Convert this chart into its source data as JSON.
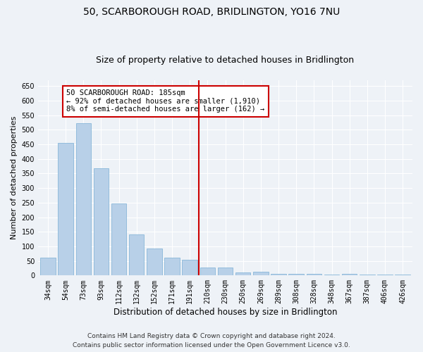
{
  "title": "50, SCARBOROUGH ROAD, BRIDLINGTON, YO16 7NU",
  "subtitle": "Size of property relative to detached houses in Bridlington",
  "xlabel": "Distribution of detached houses by size in Bridlington",
  "ylabel": "Number of detached properties",
  "categories": [
    "34sqm",
    "54sqm",
    "73sqm",
    "93sqm",
    "112sqm",
    "132sqm",
    "152sqm",
    "171sqm",
    "191sqm",
    "210sqm",
    "230sqm",
    "250sqm",
    "269sqm",
    "289sqm",
    "308sqm",
    "328sqm",
    "348sqm",
    "367sqm",
    "387sqm",
    "406sqm",
    "426sqm"
  ],
  "values": [
    60,
    455,
    522,
    368,
    248,
    140,
    92,
    62,
    55,
    28,
    27,
    10,
    12,
    5,
    6,
    5,
    3,
    5,
    3,
    4,
    3
  ],
  "bar_color": "#b8d0e8",
  "bar_edge_color": "#7aafd4",
  "vline_x": 8.5,
  "vline_color": "#cc0000",
  "annotation_title": "50 SCARBOROUGH ROAD: 185sqm",
  "annotation_line1": "← 92% of detached houses are smaller (1,910)",
  "annotation_line2": "8% of semi-detached houses are larger (162) →",
  "annotation_box_color": "#cc0000",
  "ylim": [
    0,
    670
  ],
  "yticks": [
    0,
    50,
    100,
    150,
    200,
    250,
    300,
    350,
    400,
    450,
    500,
    550,
    600,
    650
  ],
  "background_color": "#eef2f7",
  "grid_color": "#ffffff",
  "footer_line1": "Contains HM Land Registry data © Crown copyright and database right 2024.",
  "footer_line2": "Contains public sector information licensed under the Open Government Licence v3.0.",
  "title_fontsize": 10,
  "subtitle_fontsize": 9,
  "xlabel_fontsize": 8.5,
  "ylabel_fontsize": 8,
  "tick_fontsize": 7,
  "footer_fontsize": 6.5,
  "ann_fontsize": 7.5
}
